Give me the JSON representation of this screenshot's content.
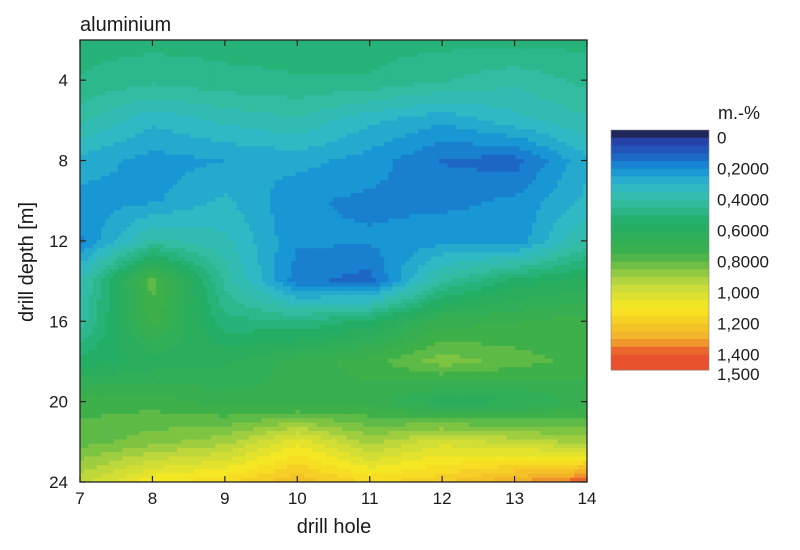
{
  "chart_data": {
    "type": "heatmap",
    "subtype": "filled-contour",
    "title": "aluminium",
    "xlabel": "drill hole",
    "ylabel": "drill depth [m]",
    "xlim": [
      7,
      14
    ],
    "ylim": [
      24,
      2
    ],
    "y_axis_inverted": true,
    "x_ticks": [
      "7",
      "8",
      "9",
      "10",
      "11",
      "12",
      "13",
      "14"
    ],
    "y_ticks": [
      "4",
      "8",
      "12",
      "16",
      "20",
      "24"
    ],
    "x": [
      7,
      8,
      9,
      10,
      11,
      12,
      13,
      14
    ],
    "y": [
      2,
      4,
      6,
      8,
      10,
      12,
      14,
      16,
      18,
      20,
      22,
      24
    ],
    "z": [
      [
        0.5,
        0.5,
        0.5,
        0.5,
        0.5,
        0.5,
        0.5,
        0.5
      ],
      [
        0.48,
        0.45,
        0.47,
        0.48,
        0.48,
        0.44,
        0.4,
        0.45
      ],
      [
        0.4,
        0.3,
        0.35,
        0.38,
        0.3,
        0.25,
        0.32,
        0.38
      ],
      [
        0.27,
        0.22,
        0.24,
        0.26,
        0.22,
        0.14,
        0.12,
        0.28
      ],
      [
        0.22,
        0.23,
        0.3,
        0.2,
        0.18,
        0.18,
        0.2,
        0.3
      ],
      [
        0.18,
        0.4,
        0.35,
        0.2,
        0.2,
        0.22,
        0.2,
        0.4
      ],
      [
        0.36,
        0.8,
        0.42,
        0.16,
        0.12,
        0.42,
        0.55,
        0.6
      ],
      [
        0.4,
        0.75,
        0.5,
        0.48,
        0.55,
        0.7,
        0.72,
        0.75
      ],
      [
        0.55,
        0.6,
        0.62,
        0.7,
        0.75,
        0.85,
        0.8,
        0.75
      ],
      [
        0.75,
        0.75,
        0.7,
        0.68,
        0.7,
        0.6,
        0.62,
        0.7
      ],
      [
        0.8,
        0.85,
        0.9,
        1.05,
        0.9,
        1.0,
        0.95,
        0.9
      ],
      [
        0.95,
        1.1,
        1.15,
        1.25,
        1.15,
        1.2,
        1.3,
        1.4
      ]
    ],
    "colorbar": {
      "unit_label": "m.-%",
      "labels": [
        "0",
        "0,2000",
        "0,4000",
        "0,6000",
        "0,8000",
        "1,000",
        "1,200",
        "1,400",
        "1,500"
      ],
      "values": [
        0,
        0.2,
        0.4,
        0.6,
        0.8,
        1.0,
        1.2,
        1.4,
        1.5
      ],
      "range": [
        -0.05,
        1.5
      ]
    },
    "colors": [
      "#141414",
      "#2b3aa0",
      "#1f5dbf",
      "#1590d6",
      "#2eb8c9",
      "#34bda6",
      "#22ad66",
      "#3eb04a",
      "#c3d93c",
      "#f8e821",
      "#f2ae2a",
      "#e8512c",
      "#e8512c"
    ],
    "color_stops": [
      -0.05,
      0.0,
      0.1,
      0.2,
      0.3,
      0.4,
      0.55,
      0.75,
      0.95,
      1.1,
      1.3,
      1.4,
      1.5
    ],
    "grid": false
  }
}
